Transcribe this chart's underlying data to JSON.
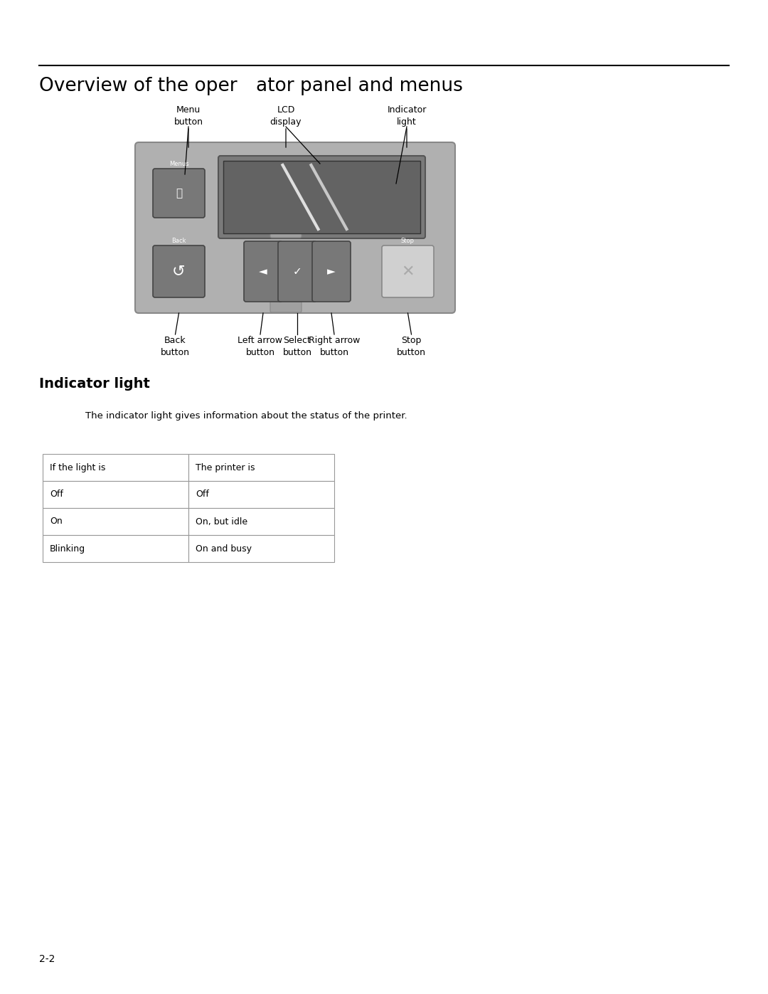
{
  "title": "Overview of the oper ator panel and menus",
  "page_number": "2-2",
  "background_color": "#ffffff",
  "panel_bg": "#b0b0b0",
  "panel_border": "#888888",
  "button_bg": "#888888",
  "button_border": "#555555",
  "lcd_bg": "#696969",
  "lcd_border": "#444444",
  "stop_btn_bg": "#d0d0d0",
  "stop_btn_border": "#888888",
  "indicator_bg": "#d8d8d8",
  "indicator_border": "#999999",
  "indicator_light_heading": "Indicator light",
  "indicator_light_desc": "The indicator light gives information about the status of the printer.",
  "table_headers": [
    "If the light is",
    "The printer is"
  ],
  "table_rows": [
    [
      "Off",
      "Off"
    ],
    [
      "On",
      "On, but idle"
    ],
    [
      "Blinking",
      "On and busy"
    ]
  ]
}
